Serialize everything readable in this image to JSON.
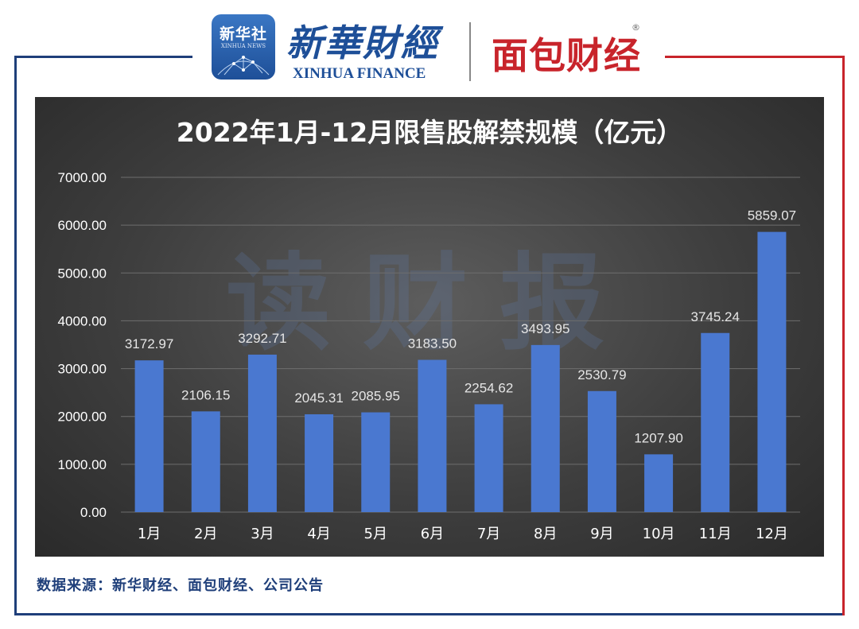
{
  "header": {
    "xinhua_badge_cn": "新华社",
    "xinhua_badge_en": "XINHUA NEWS",
    "xinhua_finance_cn": "新華財經",
    "xinhua_finance_en": "XINHUA FINANCE",
    "mianbao_cn": "面包财经",
    "registered_mark": "®"
  },
  "watermark": "读财报",
  "source_note": "数据来源：新华财经、面包财经、公司公告",
  "colors": {
    "bar": "#4a78d0",
    "panel_bg": "#3e3e3e",
    "frame_blue": "#1f3f7a",
    "frame_red": "#c8242b"
  },
  "chart_data": {
    "type": "bar",
    "title": "2022年1月-12月限售股解禁规模（亿元）",
    "categories": [
      "1月",
      "2月",
      "3月",
      "4月",
      "5月",
      "6月",
      "7月",
      "8月",
      "9月",
      "10月",
      "11月",
      "12月"
    ],
    "values": [
      3172.97,
      2106.15,
      3292.71,
      2045.31,
      2085.95,
      3183.5,
      2254.62,
      3493.95,
      2530.79,
      1207.9,
      3745.24,
      5859.07
    ],
    "value_labels": [
      "3172.97",
      "2106.15",
      "3292.71",
      "2045.31",
      "2085.95",
      "3183.50",
      "2254.62",
      "3493.95",
      "2530.79",
      "1207.90",
      "3745.24",
      "5859.07"
    ],
    "yticks": [
      "0.00",
      "1000.00",
      "2000.00",
      "3000.00",
      "4000.00",
      "5000.00",
      "6000.00",
      "7000.00"
    ],
    "ylim": [
      0,
      7000
    ],
    "grid": true,
    "legend": "none",
    "xlabel": "",
    "ylabel": ""
  }
}
